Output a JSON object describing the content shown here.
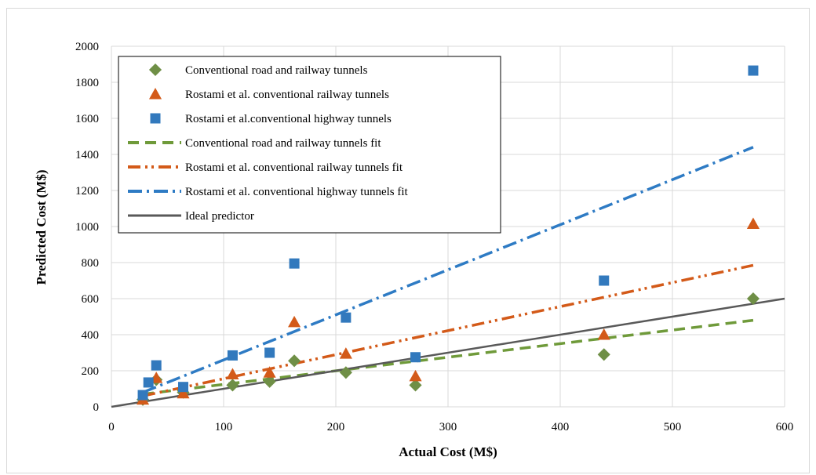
{
  "chart_data": {
    "type": "scatter",
    "title": "",
    "xlabel": "Actual Cost (M$)",
    "ylabel": "Predicted Cost (M$)",
    "xlim": [
      0,
      600
    ],
    "ylim": [
      0,
      2000
    ],
    "xticks": [
      0,
      100,
      200,
      300,
      400,
      500,
      600
    ],
    "yticks": [
      0,
      200,
      400,
      600,
      800,
      1000,
      1200,
      1400,
      1600,
      1800,
      2000
    ],
    "grid": true,
    "legend_position": "top-left",
    "series": [
      {
        "name": "Conventional road and railway tunnels",
        "kind": "points",
        "marker": "diamond",
        "color": "#6f8f46",
        "points": [
          [
            28,
            40
          ],
          [
            40,
            150
          ],
          [
            64,
            80
          ],
          [
            108,
            120
          ],
          [
            141,
            140
          ],
          [
            163,
            255
          ],
          [
            209,
            190
          ],
          [
            271,
            120
          ],
          [
            439,
            290
          ],
          [
            572,
            600
          ]
        ]
      },
      {
        "name": "Rostami et al. conventional railway tunnels",
        "kind": "points",
        "marker": "triangle",
        "color": "#d35a19",
        "points": [
          [
            28,
            40
          ],
          [
            40,
            160
          ],
          [
            64,
            75
          ],
          [
            108,
            180
          ],
          [
            141,
            190
          ],
          [
            163,
            470
          ],
          [
            209,
            295
          ],
          [
            271,
            170
          ],
          [
            439,
            400
          ],
          [
            572,
            1015
          ]
        ]
      },
      {
        "name": "Rostami et al.conventional highway tunnels",
        "kind": "points",
        "marker": "square",
        "color": "#3279bd",
        "points": [
          [
            28,
            65
          ],
          [
            33,
            135
          ],
          [
            40,
            230
          ],
          [
            64,
            110
          ],
          [
            108,
            285
          ],
          [
            141,
            300
          ],
          [
            163,
            795
          ],
          [
            209,
            495
          ],
          [
            271,
            275
          ],
          [
            439,
            700
          ],
          [
            572,
            1865
          ]
        ]
      },
      {
        "name": "Conventional road and railway tunnels fit",
        "kind": "line",
        "dash": "dash",
        "color": "#6f9a3a",
        "points": [
          [
            28,
            70
          ],
          [
            572,
            480
          ]
        ]
      },
      {
        "name": "Rostami et al. conventional railway tunnels fit",
        "kind": "line",
        "dash": "dashdotdot",
        "color": "#d35a19",
        "points": [
          [
            28,
            60
          ],
          [
            572,
            785
          ]
        ]
      },
      {
        "name": "Rostami et al. conventional highway tunnels fit",
        "kind": "line",
        "dash": "dashdot",
        "color": "#2e7bc4",
        "points": [
          [
            28,
            80
          ],
          [
            572,
            1440
          ]
        ]
      },
      {
        "name": "Ideal predictor",
        "kind": "line",
        "dash": "solid",
        "color": "#595959",
        "points": [
          [
            0,
            0
          ],
          [
            600,
            600
          ]
        ]
      }
    ]
  }
}
